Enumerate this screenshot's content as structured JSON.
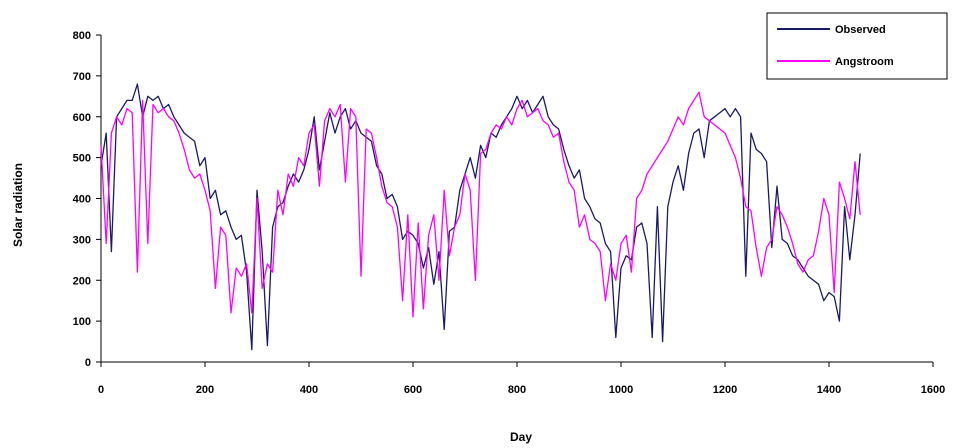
{
  "chart_data": {
    "type": "line",
    "title": "",
    "xlabel": "Day",
    "ylabel": "Solar radiation",
    "xlim": [
      0,
      1600
    ],
    "ylim": [
      0,
      800
    ],
    "x_ticks": [
      0,
      200,
      400,
      600,
      800,
      1000,
      1200,
      1400,
      1600
    ],
    "y_ticks": [
      0,
      100,
      200,
      300,
      400,
      500,
      600,
      700,
      800
    ],
    "grid": false,
    "legend_position": "top-right",
    "series": [
      {
        "name": "Observed",
        "color": "#1a1a66",
        "x": [
          0,
          10,
          20,
          30,
          40,
          50,
          60,
          70,
          80,
          90,
          100,
          110,
          120,
          130,
          140,
          150,
          160,
          170,
          180,
          190,
          200,
          210,
          220,
          230,
          240,
          250,
          260,
          270,
          280,
          290,
          300,
          310,
          320,
          330,
          340,
          350,
          360,
          370,
          380,
          390,
          400,
          410,
          420,
          430,
          440,
          450,
          460,
          470,
          480,
          490,
          500,
          510,
          520,
          530,
          540,
          550,
          560,
          570,
          580,
          590,
          600,
          610,
          620,
          630,
          640,
          650,
          660,
          670,
          680,
          690,
          700,
          710,
          720,
          730,
          740,
          750,
          760,
          770,
          780,
          790,
          800,
          810,
          820,
          830,
          840,
          850,
          860,
          870,
          880,
          890,
          900,
          910,
          920,
          930,
          940,
          950,
          960,
          970,
          980,
          990,
          1000,
          1010,
          1020,
          1030,
          1040,
          1050,
          1060,
          1070,
          1080,
          1090,
          1100,
          1110,
          1120,
          1130,
          1140,
          1150,
          1160,
          1170,
          1180,
          1190,
          1200,
          1210,
          1220,
          1230,
          1240,
          1250,
          1260,
          1270,
          1280,
          1290,
          1300,
          1310,
          1320,
          1330,
          1340,
          1350,
          1360,
          1370,
          1380,
          1390,
          1400,
          1410,
          1420,
          1430,
          1440,
          1450,
          1460
        ],
        "y": [
          480,
          560,
          270,
          600,
          620,
          640,
          640,
          680,
          600,
          650,
          640,
          650,
          620,
          630,
          600,
          580,
          560,
          550,
          540,
          480,
          500,
          400,
          420,
          360,
          370,
          330,
          300,
          310,
          220,
          30,
          420,
          270,
          40,
          330,
          380,
          390,
          430,
          460,
          440,
          470,
          520,
          600,
          470,
          540,
          610,
          560,
          600,
          620,
          570,
          590,
          560,
          550,
          540,
          480,
          460,
          400,
          410,
          380,
          300,
          320,
          310,
          290,
          230,
          280,
          190,
          270,
          80,
          320,
          330,
          420,
          460,
          500,
          450,
          530,
          500,
          560,
          550,
          580,
          600,
          620,
          650,
          620,
          640,
          610,
          630,
          650,
          600,
          580,
          570,
          520,
          480,
          450,
          470,
          400,
          380,
          350,
          340,
          290,
          270,
          60,
          230,
          260,
          250,
          330,
          340,
          290,
          60,
          380,
          50,
          380,
          440,
          480,
          420,
          510,
          560,
          570,
          500,
          590,
          600,
          610,
          620,
          600,
          620,
          600,
          210,
          560,
          520,
          510,
          490,
          280,
          430,
          300,
          290,
          260,
          250,
          230,
          210,
          200,
          190,
          150,
          170,
          160,
          100,
          380,
          250,
          360,
          510
        ]
      },
      {
        "name": "Angstroom",
        "color": "#ff00ff",
        "x": [
          0,
          10,
          20,
          30,
          40,
          50,
          60,
          70,
          80,
          90,
          100,
          110,
          120,
          130,
          140,
          150,
          160,
          170,
          180,
          190,
          200,
          210,
          220,
          230,
          240,
          250,
          260,
          270,
          280,
          290,
          300,
          310,
          320,
          330,
          340,
          350,
          360,
          370,
          380,
          390,
          400,
          410,
          420,
          430,
          440,
          450,
          460,
          470,
          480,
          490,
          500,
          510,
          520,
          530,
          540,
          550,
          560,
          570,
          580,
          590,
          600,
          610,
          620,
          630,
          640,
          650,
          660,
          670,
          680,
          690,
          700,
          710,
          720,
          730,
          740,
          750,
          760,
          770,
          780,
          790,
          800,
          810,
          820,
          830,
          840,
          850,
          860,
          870,
          880,
          890,
          900,
          910,
          920,
          930,
          940,
          950,
          960,
          970,
          980,
          990,
          1000,
          1010,
          1020,
          1030,
          1040,
          1050,
          1060,
          1070,
          1080,
          1090,
          1100,
          1110,
          1120,
          1130,
          1140,
          1150,
          1160,
          1170,
          1180,
          1190,
          1200,
          1210,
          1220,
          1230,
          1240,
          1250,
          1260,
          1270,
          1280,
          1290,
          1300,
          1310,
          1320,
          1330,
          1340,
          1350,
          1360,
          1370,
          1380,
          1390,
          1400,
          1410,
          1420,
          1430,
          1440,
          1450,
          1460
        ],
        "y": [
          530,
          290,
          560,
          600,
          580,
          620,
          610,
          220,
          640,
          290,
          630,
          610,
          620,
          600,
          590,
          560,
          520,
          470,
          450,
          460,
          420,
          370,
          180,
          330,
          310,
          120,
          230,
          210,
          240,
          120,
          400,
          180,
          240,
          220,
          420,
          360,
          460,
          430,
          500,
          480,
          560,
          580,
          430,
          590,
          620,
          600,
          630,
          440,
          620,
          600,
          210,
          570,
          560,
          500,
          430,
          390,
          380,
          330,
          150,
          360,
          110,
          340,
          130,
          310,
          360,
          200,
          420,
          260,
          330,
          360,
          460,
          420,
          200,
          510,
          520,
          560,
          580,
          570,
          600,
          580,
          620,
          640,
          600,
          610,
          620,
          590,
          580,
          550,
          560,
          490,
          440,
          420,
          330,
          360,
          300,
          290,
          270,
          150,
          240,
          200,
          290,
          310,
          220,
          400,
          420,
          460,
          480,
          500,
          520,
          540,
          570,
          600,
          580,
          620,
          640,
          660,
          600,
          590,
          580,
          570,
          560,
          530,
          500,
          450,
          380,
          370,
          280,
          210,
          280,
          300,
          380,
          360,
          330,
          290,
          240,
          220,
          250,
          260,
          320,
          400,
          360,
          170,
          440,
          400,
          350,
          490,
          360
        ]
      }
    ]
  }
}
